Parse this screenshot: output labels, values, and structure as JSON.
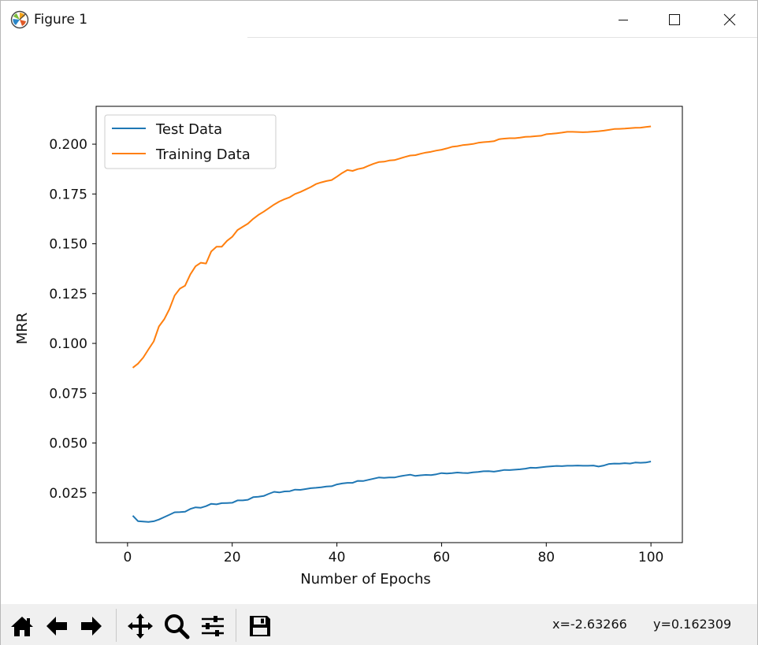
{
  "window": {
    "title": "Figure 1",
    "icon": "matplotlib-icon",
    "controls": [
      "minimize-icon",
      "maximize-icon",
      "close-icon"
    ]
  },
  "toolbar": {
    "buttons": [
      "home-icon",
      "back-icon",
      "forward-icon",
      "pan-icon",
      "zoom-icon",
      "configure-subplots-icon",
      "save-icon"
    ],
    "x_readout": "x=-2.63266",
    "y_readout": "y=0.162309"
  },
  "chart_data": {
    "type": "line",
    "xlabel": "Number of Epochs",
    "ylabel": "MRR",
    "xlim": [
      -6,
      106
    ],
    "ylim": [
      0.0,
      0.219
    ],
    "xticks": [
      0,
      20,
      40,
      60,
      80,
      100
    ],
    "xtick_labels": [
      "0",
      "20",
      "40",
      "60",
      "80",
      "100"
    ],
    "yticks": [
      0.025,
      0.05,
      0.075,
      0.1,
      0.125,
      0.15,
      0.175,
      0.2
    ],
    "ytick_labels": [
      "0.025",
      "0.050",
      "0.075",
      "0.100",
      "0.125",
      "0.150",
      "0.175",
      "0.200"
    ],
    "grid": false,
    "legend_position": "top-left",
    "series": [
      {
        "name": "Test Data",
        "color": "#1f77b4",
        "x": [
          1,
          2,
          3,
          4,
          5,
          6,
          7,
          8,
          9,
          10,
          11,
          12,
          13,
          14,
          15,
          16,
          17,
          18,
          19,
          20,
          21,
          22,
          23,
          24,
          25,
          26,
          27,
          28,
          29,
          30,
          31,
          32,
          33,
          34,
          35,
          36,
          37,
          38,
          39,
          40,
          41,
          42,
          43,
          44,
          45,
          46,
          47,
          48,
          49,
          50,
          51,
          52,
          53,
          54,
          55,
          56,
          57,
          58,
          59,
          60,
          61,
          62,
          63,
          64,
          65,
          66,
          67,
          68,
          69,
          70,
          71,
          72,
          73,
          74,
          75,
          76,
          77,
          78,
          79,
          80,
          81,
          82,
          83,
          84,
          85,
          86,
          87,
          88,
          89,
          90,
          91,
          92,
          93,
          94,
          95,
          96,
          97,
          98,
          99,
          100
        ],
        "y": [
          0.0135,
          0.0108,
          0.0106,
          0.0104,
          0.0107,
          0.0116,
          0.0128,
          0.014,
          0.0152,
          0.0153,
          0.0155,
          0.0169,
          0.0177,
          0.0175,
          0.0183,
          0.0195,
          0.0192,
          0.0198,
          0.0199,
          0.02,
          0.0212,
          0.0212,
          0.0215,
          0.0228,
          0.023,
          0.0234,
          0.0245,
          0.0255,
          0.0252,
          0.0257,
          0.0258,
          0.0266,
          0.0265,
          0.0269,
          0.0273,
          0.0275,
          0.0278,
          0.0282,
          0.0283,
          0.0292,
          0.0297,
          0.03,
          0.03,
          0.031,
          0.0309,
          0.0315,
          0.0321,
          0.0327,
          0.0325,
          0.0327,
          0.0327,
          0.0333,
          0.0337,
          0.0341,
          0.0335,
          0.0338,
          0.034,
          0.0339,
          0.0343,
          0.0349,
          0.0347,
          0.0349,
          0.0352,
          0.035,
          0.0349,
          0.0353,
          0.0355,
          0.0358,
          0.0359,
          0.0356,
          0.036,
          0.0365,
          0.0364,
          0.0366,
          0.0368,
          0.0371,
          0.0376,
          0.0375,
          0.0378,
          0.0381,
          0.0383,
          0.0385,
          0.0384,
          0.0386,
          0.0386,
          0.0387,
          0.0386,
          0.0386,
          0.0387,
          0.0382,
          0.0387,
          0.0395,
          0.0397,
          0.0396,
          0.0399,
          0.0397,
          0.0402,
          0.0401,
          0.0402,
          0.0407
        ]
      },
      {
        "name": "Training Data",
        "color": "#ff7f0e",
        "x": [
          1,
          2,
          3,
          4,
          5,
          6,
          7,
          8,
          9,
          10,
          11,
          12,
          13,
          14,
          15,
          16,
          17,
          18,
          19,
          20,
          21,
          22,
          23,
          24,
          25,
          26,
          27,
          28,
          29,
          30,
          31,
          32,
          33,
          34,
          35,
          36,
          37,
          38,
          39,
          40,
          41,
          42,
          43,
          44,
          45,
          46,
          47,
          48,
          49,
          50,
          51,
          52,
          53,
          54,
          55,
          56,
          57,
          58,
          59,
          60,
          61,
          62,
          63,
          64,
          65,
          66,
          67,
          68,
          69,
          70,
          71,
          72,
          73,
          74,
          75,
          76,
          77,
          78,
          79,
          80,
          81,
          82,
          83,
          84,
          85,
          86,
          87,
          88,
          89,
          90,
          91,
          92,
          93,
          94,
          95,
          96,
          97,
          98,
          99,
          100
        ],
        "y": [
          0.0878,
          0.0898,
          0.0929,
          0.097,
          0.101,
          0.1085,
          0.1121,
          0.1172,
          0.124,
          0.1275,
          0.129,
          0.1347,
          0.1387,
          0.1405,
          0.1401,
          0.1462,
          0.1485,
          0.1485,
          0.1515,
          0.1535,
          0.1569,
          0.1585,
          0.1601,
          0.1625,
          0.1645,
          0.1661,
          0.1679,
          0.1697,
          0.1712,
          0.1724,
          0.1734,
          0.175,
          0.176,
          0.1772,
          0.1785,
          0.18,
          0.1808,
          0.1815,
          0.182,
          0.1837,
          0.1855,
          0.187,
          0.1866,
          0.1875,
          0.188,
          0.1891,
          0.1902,
          0.191,
          0.1912,
          0.1918,
          0.192,
          0.1928,
          0.1936,
          0.1943,
          0.1945,
          0.1952,
          0.1958,
          0.1962,
          0.1968,
          0.1972,
          0.1979,
          0.1987,
          0.199,
          0.1995,
          0.1998,
          0.2001,
          0.2007,
          0.201,
          0.2012,
          0.2015,
          0.2025,
          0.2028,
          0.203,
          0.203,
          0.2033,
          0.2037,
          0.2038,
          0.204,
          0.2042,
          0.205,
          0.2052,
          0.2055,
          0.2058,
          0.2062,
          0.2062,
          0.2061,
          0.206,
          0.2061,
          0.2063,
          0.2065,
          0.2068,
          0.2072,
          0.2076,
          0.2077,
          0.2078,
          0.208,
          0.2082,
          0.2083,
          0.2086,
          0.2089
        ]
      }
    ]
  }
}
